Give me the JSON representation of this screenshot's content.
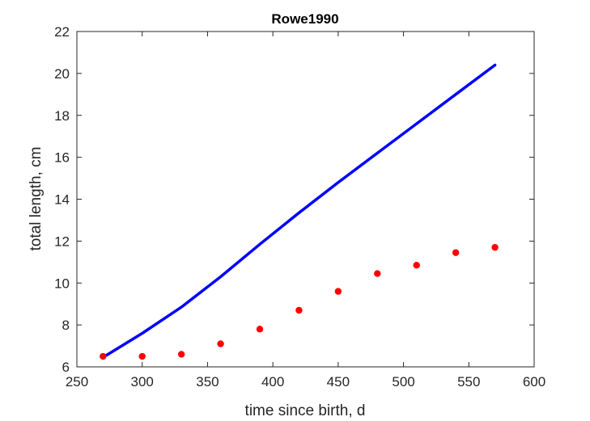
{
  "chart_data": {
    "type": "line",
    "title": "Rowe1990",
    "xlabel": "time since birth, d",
    "ylabel": "total length, cm",
    "xlim": [
      250,
      600
    ],
    "ylim": [
      6,
      22
    ],
    "xticks": [
      250,
      300,
      350,
      400,
      450,
      500,
      550,
      600
    ],
    "yticks": [
      6,
      8,
      10,
      12,
      14,
      16,
      18,
      20,
      22
    ],
    "grid": false,
    "series": [
      {
        "kind": "line",
        "color": "#0000ff",
        "x": [
          270,
          300,
          330,
          360,
          390,
          420,
          450,
          480,
          510,
          540,
          570
        ],
        "y": [
          6.45,
          7.6,
          8.85,
          10.3,
          11.85,
          13.35,
          14.8,
          16.2,
          17.6,
          19.0,
          20.4
        ]
      },
      {
        "kind": "scatter",
        "color": "#ff0000",
        "x": [
          270,
          300,
          330,
          360,
          390,
          420,
          450,
          480,
          510,
          540,
          570
        ],
        "y": [
          6.5,
          6.5,
          6.6,
          7.1,
          7.8,
          8.7,
          9.6,
          10.45,
          10.85,
          11.45,
          11.7
        ]
      }
    ]
  }
}
